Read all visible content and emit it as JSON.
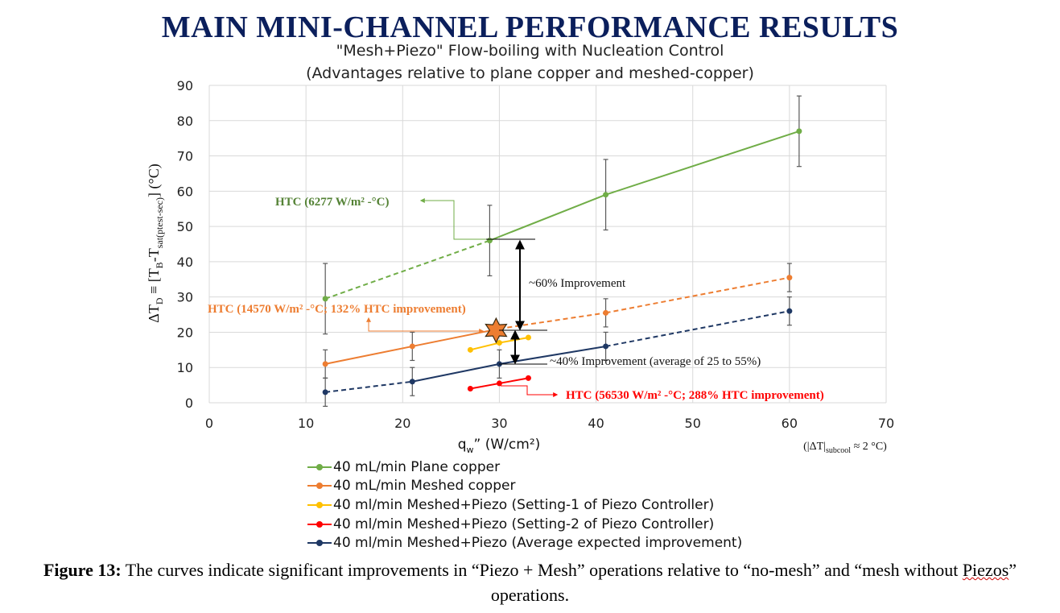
{
  "page": {
    "title": "MAIN MINI-CHANNEL PERFORMANCE RESULTS",
    "caption_label": "Figure 13:",
    "caption_text_1": " The curves indicate significant improvements in “Piezo + Mesh” operations relative to “no-mesh” and “mesh without ",
    "caption_text_squig": "Piezos",
    "caption_text_2": "” operations."
  },
  "chart_data": {
    "type": "line",
    "title": "\"Mesh+Piezo\" Flow-boiling with Nucleation Control",
    "subtitle": "(Advantages relative to plane copper and meshed-copper)",
    "xlabel": "q",
    "xlabel_sub": "w",
    "xlabel_rest": "” (W/cm²)",
    "ylabel": "ΔT",
    "ylabel_sub": "D",
    "ylabel_mid": " ≡ [T",
    "ylabel_sub2": "B",
    "ylabel_mid2": "-T",
    "ylabel_sub3": "sat(ptest-sec)",
    "ylabel_end": "] (°C)",
    "xlim": [
      0,
      70
    ],
    "ylim": [
      0,
      90
    ],
    "x_ticks": [
      "0",
      "10",
      "20",
      "30",
      "40",
      "50",
      "60",
      "70"
    ],
    "y_ticks": [
      "0",
      "10",
      "20",
      "30",
      "40",
      "50",
      "60",
      "70",
      "80",
      "90"
    ],
    "grid": true,
    "legend_position": "bottom",
    "subcool_note": "(|ΔT|",
    "subcool_sub": "subcool",
    "subcool_end": " ≈ 2 °C)",
    "series": [
      {
        "name": "40 mL/min Plane copper",
        "color": "#70ad47",
        "points": [
          [
            12,
            29.5
          ],
          [
            29,
            46
          ],
          [
            41,
            59
          ],
          [
            61,
            77
          ]
        ],
        "errors": [
          10,
          10,
          10,
          10
        ],
        "dashed_segments": [
          0
        ]
      },
      {
        "name": "40 mL/min Meshed copper",
        "color": "#ed7d31",
        "points": [
          [
            12,
            11
          ],
          [
            21,
            16
          ],
          [
            30,
            21
          ],
          [
            41,
            25.5
          ],
          [
            60,
            35.5
          ]
        ],
        "errors": [
          4,
          4,
          0,
          4,
          4
        ],
        "dashed_segments": [
          2,
          3
        ]
      },
      {
        "name": "40 ml/min Meshed+Piezo (Setting-1 of Piezo Controller)",
        "color": "#ffc000",
        "points": [
          [
            27,
            15
          ],
          [
            30,
            17
          ],
          [
            33,
            18.5
          ]
        ],
        "errors": [
          0,
          0,
          0
        ],
        "dashed_segments": []
      },
      {
        "name": "40 ml/min Meshed+Piezo (Setting-2 of Piezo Controller)",
        "color": "#ff0000",
        "points": [
          [
            27,
            4
          ],
          [
            30,
            5.5
          ],
          [
            33,
            7
          ]
        ],
        "errors": [
          0,
          0,
          0
        ],
        "dashed_segments": []
      },
      {
        "name": "40 ml/min Meshed+Piezo (Average expected improvement)",
        "color": "#1f3864",
        "points": [
          [
            12,
            3
          ],
          [
            21,
            6
          ],
          [
            30,
            11
          ],
          [
            41,
            16
          ],
          [
            60,
            26
          ]
        ],
        "errors": [
          4,
          4,
          4,
          4,
          4
        ],
        "dashed_segments": [
          0,
          3
        ]
      }
    ],
    "annotations": {
      "htc_plane": "HTC (6277 W/m² -°C)",
      "htc_meshed": "HTC (14570 W/m² -°C; 132% HTC improvement)",
      "htc_piezo": "HTC (56530 W/m² -°C; 288% HTC improvement)",
      "improve_60": "~60% Improvement",
      "improve_40": "~40% Improvement (average of 25 to 55%)"
    }
  }
}
